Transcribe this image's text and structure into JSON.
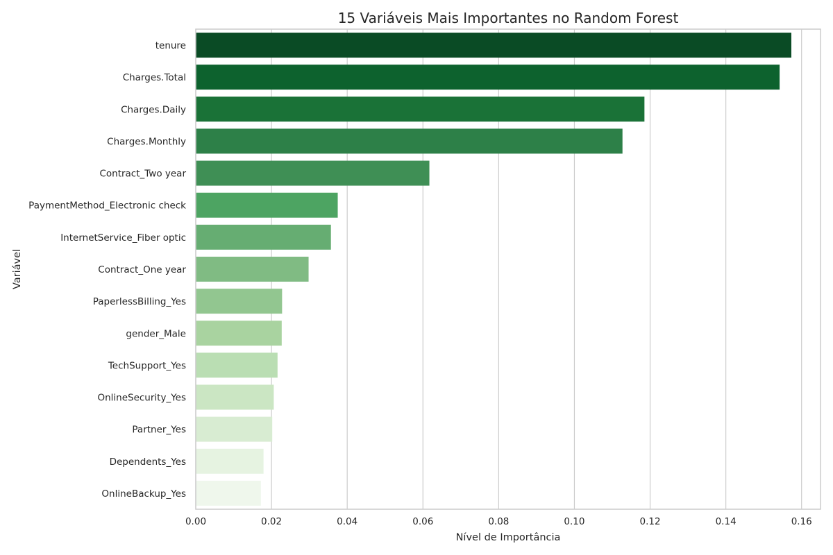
{
  "chart_data": {
    "type": "bar",
    "orientation": "horizontal",
    "title": "15 Variáveis Mais Importantes no Random Forest",
    "xlabel": "Nível de Importância",
    "ylabel": "Variável",
    "xlim": [
      0,
      0.165
    ],
    "xticks": [
      "0.00",
      "0.02",
      "0.04",
      "0.06",
      "0.08",
      "0.10",
      "0.12",
      "0.14",
      "0.16"
    ],
    "xtick_values": [
      0,
      0.02,
      0.04,
      0.06,
      0.08,
      0.1,
      0.12,
      0.14,
      0.16
    ],
    "grid": "vertical",
    "categories": [
      "tenure",
      "Charges.Total",
      "Charges.Daily",
      "Charges.Monthly",
      "Contract_Two year",
      "PaymentMethod_Electronic check",
      "InternetService_Fiber optic",
      "Contract_One year",
      "PaperlessBilling_Yes",
      "gender_Male",
      "TechSupport_Yes",
      "OnlineSecurity_Yes",
      "Partner_Yes",
      "Dependents_Yes",
      "OnlineBackup_Yes"
    ],
    "values": [
      0.1573,
      0.1542,
      0.1185,
      0.1127,
      0.0617,
      0.0375,
      0.0357,
      0.0298,
      0.0228,
      0.0227,
      0.0216,
      0.0206,
      0.0202,
      0.0179,
      0.0172
    ],
    "colors": [
      "#0a4b25",
      "#0d622e",
      "#1a7237",
      "#2d8048",
      "#3f8f55",
      "#4da462",
      "#66ad72",
      "#80bb83",
      "#92c690",
      "#a9d3a0",
      "#badeb3",
      "#cbe6c3",
      "#d8ecd2",
      "#e6f3e1",
      "#eff7ec"
    ]
  }
}
